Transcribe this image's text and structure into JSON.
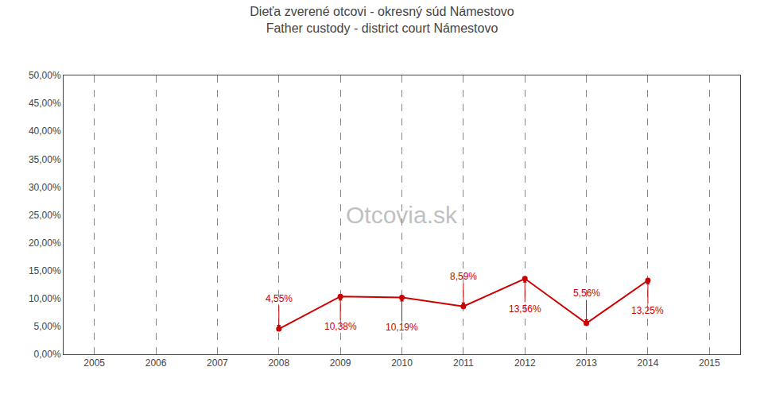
{
  "chart_data": {
    "type": "line",
    "title": "Dieťa zverené otcovi - okresný súd Námestovo",
    "subtitle": "Father custody - district court Námestovo",
    "x": [
      2008,
      2009,
      2010,
      2011,
      2012,
      2013,
      2014
    ],
    "values": [
      0.0455,
      0.1038,
      0.1019,
      0.0859,
      0.1356,
      0.0556,
      0.1325
    ],
    "value_labels": [
      "4,55%",
      "10,38%",
      "10,19%",
      "8,59%",
      "13,56%",
      "5,56%",
      "13,25%"
    ],
    "data_labels": true,
    "color": "#cc0000",
    "marker": "circle",
    "line_style": "solid",
    "xlim": [
      2004.5,
      2015.5
    ],
    "xticks": [
      2005,
      2006,
      2007,
      2008,
      2009,
      2010,
      2011,
      2012,
      2013,
      2014,
      2015
    ],
    "ylim": [
      0.0,
      0.5
    ],
    "yticks": [
      {
        "value": 0.0,
        "label": "0,00%"
      },
      {
        "value": 0.05,
        "label": "5,00%"
      },
      {
        "value": 0.1,
        "label": "10,00%"
      },
      {
        "value": 0.15,
        "label": "15,00%"
      },
      {
        "value": 0.2,
        "label": "20,00%"
      },
      {
        "value": 0.25,
        "label": "25,00%"
      },
      {
        "value": 0.3,
        "label": "30,00%"
      },
      {
        "value": 0.35,
        "label": "35,00%"
      },
      {
        "value": 0.4,
        "label": "40,00%"
      },
      {
        "value": 0.45,
        "label": "45,00%"
      },
      {
        "value": 0.5,
        "label": "50,00%"
      }
    ],
    "grid": "x",
    "annotations": [
      "Otcovia.sk"
    ]
  }
}
